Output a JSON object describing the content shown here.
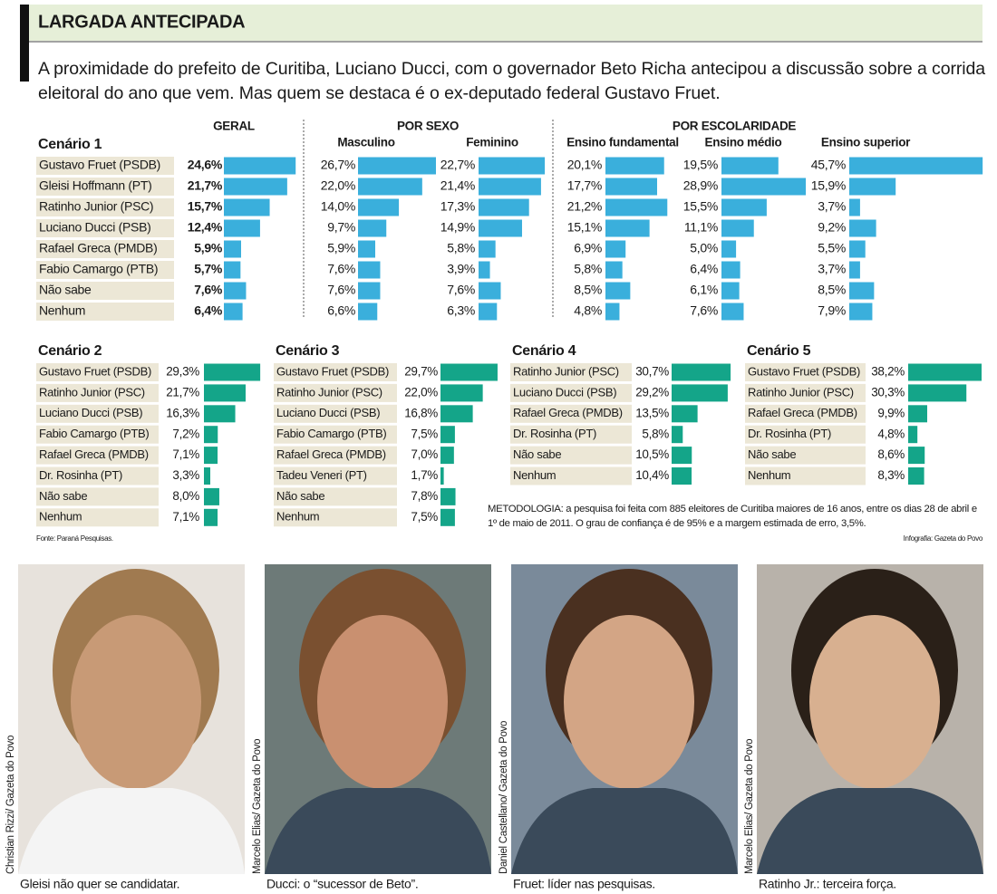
{
  "header": {
    "title": "LARGADA ANTECIPADA",
    "intro": "A proximidade do prefeito de Curitiba, Luciano Ducci, com o governador Beto Richa antecipou a discussão sobre a corrida eleitoral do ano que vem. Mas quem se destaca é o ex-deputado federal Gustavo Fruet."
  },
  "chart_data": [
    {
      "type": "bar",
      "orientation": "horizontal",
      "title": "Cenário 1",
      "color": "#3aafdc",
      "categories": [
        "Gustavo Fruet (PSDB)",
        "Gleisi Hoffmann (PT)",
        "Ratinho Junior (PSC)",
        "Luciano Ducci (PSB)",
        "Rafael Greca (PMDB)",
        "Fabio Camargo (PTB)",
        "Não sabe",
        "Nenhum"
      ],
      "column_groups": [
        {
          "label": "GERAL",
          "series": [
            {
              "values": [
                24.6,
                21.7,
                15.7,
                12.4,
                5.9,
                5.7,
                7.6,
                6.4
              ],
              "value_labels": [
                "24,6%",
                "21,7%",
                "15,7%",
                "12,4%",
                "5,9%",
                "5,7%",
                "7,6%",
                "6,4%"
              ]
            }
          ]
        },
        {
          "label": "POR SEXO",
          "series": [
            {
              "name": "Masculino",
              "values": [
                26.7,
                22.0,
                14.0,
                9.7,
                5.9,
                7.6,
                7.6,
                6.6
              ],
              "value_labels": [
                "26,7%",
                "22,0%",
                "14,0%",
                "9,7%",
                "5,9%",
                "7,6%",
                "7,6%",
                "6,6%"
              ]
            },
            {
              "name": "Feminino",
              "values": [
                22.7,
                21.4,
                17.3,
                14.9,
                5.8,
                3.9,
                7.6,
                6.3
              ],
              "value_labels": [
                "22,7%",
                "21,4%",
                "17,3%",
                "14,9%",
                "5,8%",
                "3,9%",
                "7,6%",
                "6,3%"
              ]
            }
          ]
        },
        {
          "label": "POR ESCOLARIDADE",
          "series": [
            {
              "name": "Ensino fundamental",
              "values": [
                20.1,
                17.7,
                21.2,
                15.1,
                6.9,
                5.8,
                8.5,
                4.8
              ],
              "value_labels": [
                "20,1%",
                "17,7%",
                "21,2%",
                "15,1%",
                "6,9%",
                "5,8%",
                "8,5%",
                "4,8%"
              ]
            },
            {
              "name": "Ensino médio",
              "values": [
                19.5,
                28.9,
                15.5,
                11.1,
                5.0,
                6.4,
                6.1,
                7.6
              ],
              "value_labels": [
                "19,5%",
                "28,9%",
                "15,5%",
                "11,1%",
                "5,0%",
                "6,4%",
                "6,1%",
                "7,6%"
              ]
            },
            {
              "name": "Ensino superior",
              "values": [
                45.7,
                15.9,
                3.7,
                9.2,
                5.5,
                3.7,
                8.5,
                7.9
              ],
              "value_labels": [
                "45,7%",
                "15,9%",
                "3,7%",
                "9,2%",
                "5,5%",
                "3,7%",
                "8,5%",
                "7,9%"
              ]
            }
          ]
        }
      ]
    },
    {
      "type": "bar",
      "orientation": "horizontal",
      "title": "Cenário 2",
      "color": "#14a589",
      "categories": [
        "Gustavo Fruet (PSDB)",
        "Ratinho Junior (PSC)",
        "Luciano Ducci (PSB)",
        "Fabio Camargo (PTB)",
        "Rafael Greca (PMDB)",
        "Dr. Rosinha (PT)",
        "Não sabe",
        "Nenhum"
      ],
      "values": [
        29.3,
        21.7,
        16.3,
        7.2,
        7.1,
        3.3,
        8.0,
        7.1
      ],
      "value_labels": [
        "29,3%",
        "21,7%",
        "16,3%",
        "7,2%",
        "7,1%",
        "3,3%",
        "8,0%",
        "7,1%"
      ]
    },
    {
      "type": "bar",
      "orientation": "horizontal",
      "title": "Cenário 3",
      "color": "#14a589",
      "categories": [
        "Gustavo Fruet (PSDB)",
        "Ratinho Junior (PSC)",
        "Luciano Ducci (PSB)",
        "Fabio Camargo (PTB)",
        "Rafael Greca (PMDB)",
        "Tadeu Veneri (PT)",
        "Não sabe",
        "Nenhum"
      ],
      "values": [
        29.7,
        22.0,
        16.8,
        7.5,
        7.0,
        1.7,
        7.8,
        7.5
      ],
      "value_labels": [
        "29,7%",
        "22,0%",
        "16,8%",
        "7,5%",
        "7,0%",
        "1,7%",
        "7,8%",
        "7,5%"
      ]
    },
    {
      "type": "bar",
      "orientation": "horizontal",
      "title": "Cenário 4",
      "color": "#14a589",
      "categories": [
        "Ratinho Junior (PSC)",
        "Luciano Ducci (PSB)",
        "Rafael Greca (PMDB)",
        "Dr. Rosinha (PT)",
        "Não sabe",
        "Nenhum"
      ],
      "values": [
        30.7,
        29.2,
        13.5,
        5.8,
        10.5,
        10.4
      ],
      "value_labels": [
        "30,7%",
        "29,2%",
        "13,5%",
        "5,8%",
        "10,5%",
        "10,4%"
      ]
    },
    {
      "type": "bar",
      "orientation": "horizontal",
      "title": "Cenário 5",
      "color": "#14a589",
      "categories": [
        "Gustavo Fruet (PSDB)",
        "Ratinho Junior (PSC)",
        "Rafael Greca (PMDB)",
        "Dr. Rosinha (PT)",
        "Não sabe",
        "Nenhum"
      ],
      "values": [
        38.2,
        30.3,
        9.9,
        4.8,
        8.6,
        8.3
      ],
      "value_labels": [
        "38,2%",
        "30,3%",
        "9,9%",
        "4,8%",
        "8,6%",
        "8,3%"
      ]
    }
  ],
  "methodology": "METODOLOGIA: a pesquisa foi feita com 885 eleitores de Curitiba maiores de 16 anos, entre os dias 28 de abril e 1º de maio de 2011. O grau de confiança é de 95% e a margem estimada de erro, 3,5%.",
  "source": "Fonte: Paraná Pesquisas.",
  "credit": "Infografia: Gazeta do Povo",
  "photos": [
    {
      "credit": "Christian Rizzi/ Gazeta do Povo",
      "caption": "Gleisi não quer se candidatar."
    },
    {
      "credit": "Marcelo Elias/ Gazeta do Povo",
      "caption": "Ducci: o “sucessor de Beto”."
    },
    {
      "credit": "Daniel Castellano/ Gazeta do Povo",
      "caption": "Fruet: líder nas pesquisas."
    },
    {
      "credit": "Marcelo Elias/ Gazeta do Povo",
      "caption": "Ratinho Jr.: terceira força."
    }
  ]
}
